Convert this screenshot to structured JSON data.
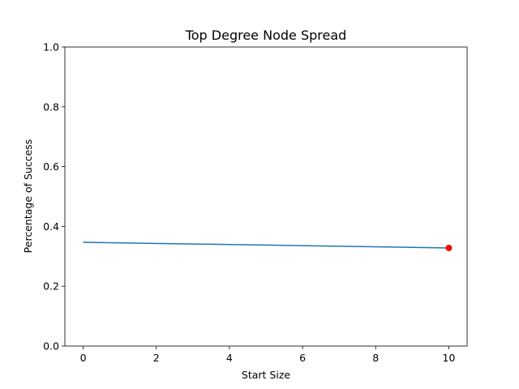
{
  "chart_data": {
    "type": "line",
    "title": "Top Degree Node Spread",
    "xlabel": "Start Size",
    "ylabel": "Percentage of Success",
    "xlim": [
      -0.5,
      10.5
    ],
    "ylim": [
      0.0,
      1.0
    ],
    "xticks": [
      "0",
      "2",
      "4",
      "6",
      "8",
      "10"
    ],
    "yticks": [
      "0.0",
      "0.2",
      "0.4",
      "0.6",
      "0.8",
      "1.0"
    ],
    "grid": false,
    "series": [
      {
        "x": [
          0,
          10
        ],
        "y": [
          0.347,
          0.328
        ],
        "color": "#1f77b4"
      }
    ],
    "markers": [
      {
        "x": 10,
        "y": 0.328,
        "color": "#ff0000"
      }
    ]
  }
}
